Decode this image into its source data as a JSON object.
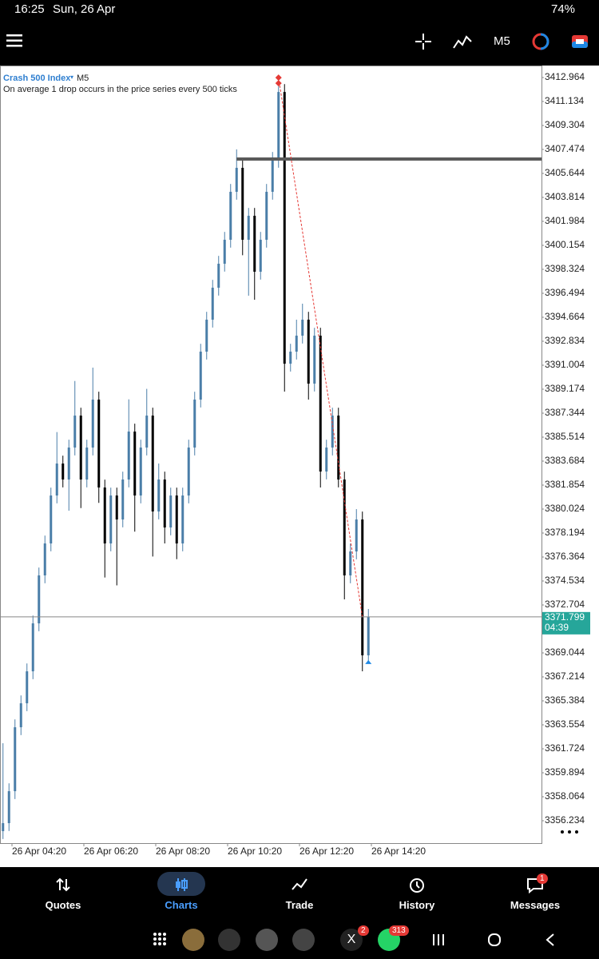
{
  "status_bar": {
    "time": "16:25",
    "date": "Sun, 26 Apr",
    "battery": "74%"
  },
  "toolbar": {
    "timeframe": "M5"
  },
  "chart_data": {
    "type": "candlestick",
    "title": "Crash 500 Index",
    "timeframe": "M5",
    "subtitle": "On average 1 drop occurs in the price series every 500 ticks",
    "open": [
      3355.44,
      3356.05,
      3358.49,
      3363.37,
      3365.2,
      3367.64,
      3371.3,
      3374.96,
      3377.4,
      3381.06,
      3383.5,
      3382.28,
      3384.72,
      3387.16,
      3382.28,
      3384.72,
      3388.38,
      3381.67,
      3377.4,
      3381.06,
      3379.23,
      3382.28,
      3385.94,
      3381.06,
      3384.72,
      3387.16,
      3379.84,
      3382.28,
      3378.62,
      3381.06,
      3377.4,
      3381.06,
      3384.72,
      3388.38,
      3392.04,
      3394.48,
      3396.92,
      3398.75,
      3400.58,
      3404.24,
      3406.07,
      3400.58,
      3402.41,
      3398.14,
      3400.58,
      3404.24,
      3406.68,
      3411.86,
      3391.12,
      3392.04,
      3393.26,
      3394.48,
      3389.6,
      3393.26,
      3382.89,
      3384.72,
      3387.16,
      3382.28,
      3374.96,
      3376.79,
      3379.23,
      3368.86
    ],
    "high": [
      3362.15,
      3359.09,
      3363.97,
      3365.8,
      3368.24,
      3371.9,
      3375.56,
      3378.0,
      3381.66,
      3385.9,
      3384.1,
      3385.32,
      3389.8,
      3387.76,
      3385.32,
      3390.82,
      3388.98,
      3382.27,
      3381.66,
      3381.66,
      3382.88,
      3388.4,
      3386.54,
      3385.32,
      3389.2,
      3387.76,
      3383.5,
      3382.88,
      3381.66,
      3381.66,
      3381.66,
      3385.32,
      3388.98,
      3392.64,
      3395.08,
      3397.52,
      3399.35,
      3401.18,
      3404.84,
      3407.48,
      3406.67,
      3403.01,
      3403.01,
      3401.18,
      3404.84,
      3407.28,
      3412.96,
      3412.46,
      3392.64,
      3394.48,
      3395.7,
      3395.08,
      3393.86,
      3393.86,
      3385.32,
      3387.76,
      3387.76,
      3382.88,
      3377.39,
      3380.02,
      3379.83,
      3372.4
    ],
    "low": [
      3354.84,
      3355.45,
      3357.89,
      3362.77,
      3364.6,
      3367.04,
      3370.7,
      3374.36,
      3376.8,
      3380.46,
      3381.68,
      3379.9,
      3384.12,
      3380.1,
      3381.68,
      3384.12,
      3380.5,
      3374.8,
      3376.8,
      3374.2,
      3378.63,
      3381.68,
      3378.3,
      3380.46,
      3384.12,
      3376.4,
      3379.24,
      3377.4,
      3378.02,
      3376.2,
      3376.8,
      3380.46,
      3384.12,
      3387.78,
      3391.44,
      3393.88,
      3396.32,
      3398.15,
      3399.98,
      3403.64,
      3399.4,
      3396.31,
      3396.0,
      3397.54,
      3399.98,
      3403.64,
      3406.08,
      3388.99,
      3390.52,
      3391.44,
      3392.66,
      3388.38,
      3389.0,
      3381.67,
      3382.29,
      3384.12,
      3381.68,
      3373.13,
      3374.36,
      3376.19,
      3367.64,
      3368.26
    ],
    "close": [
      3356.05,
      3358.49,
      3363.37,
      3365.2,
      3367.64,
      3371.3,
      3374.96,
      3377.4,
      3381.06,
      3383.5,
      3382.28,
      3384.72,
      3387.16,
      3382.28,
      3384.72,
      3388.38,
      3381.67,
      3377.4,
      3381.06,
      3379.23,
      3382.28,
      3385.94,
      3381.06,
      3384.72,
      3387.16,
      3379.84,
      3382.28,
      3378.62,
      3381.06,
      3377.4,
      3381.06,
      3384.72,
      3388.38,
      3392.04,
      3394.48,
      3396.92,
      3398.75,
      3400.58,
      3404.24,
      3406.07,
      3400.58,
      3402.41,
      3398.14,
      3400.58,
      3404.24,
      3406.68,
      3411.86,
      3391.12,
      3392.04,
      3393.26,
      3394.48,
      3389.6,
      3393.26,
      3382.89,
      3384.72,
      3387.16,
      3382.28,
      3374.96,
      3376.79,
      3379.23,
      3368.86,
      3371.799
    ],
    "up_color": "#4a7ea8",
    "down_color": "#000000",
    "xlim": [
      -0.5,
      89.9
    ],
    "xticks": [
      {
        "value": 1.5,
        "label": "26 Apr 04:20"
      },
      {
        "value": 13.5,
        "label": "26 Apr 06:20"
      },
      {
        "value": 25.5,
        "label": "26 Apr 08:20"
      },
      {
        "value": 37.5,
        "label": "26 Apr 10:20"
      },
      {
        "value": 49.5,
        "label": "26 Apr 12:20"
      },
      {
        "value": 61.5,
        "label": "26 Apr 14:20"
      }
    ],
    "ylim": [
      3354.526,
      3413.879
    ],
    "yticks": [
      3412.964,
      3411.134,
      3409.304,
      3407.474,
      3405.644,
      3403.814,
      3401.984,
      3400.154,
      3398.324,
      3396.494,
      3394.664,
      3392.834,
      3391.004,
      3389.174,
      3387.344,
      3385.514,
      3383.684,
      3381.854,
      3380.024,
      3378.194,
      3376.364,
      3374.534,
      3372.704,
      3369.044,
      3367.214,
      3365.384,
      3363.554,
      3361.724,
      3359.894,
      3358.064,
      3356.234
    ],
    "hline": {
      "value": 3406.74,
      "from": 39,
      "color": "#5a5a5a"
    },
    "trendline": {
      "x": [
        46,
        60
      ],
      "y": [
        3412.96,
        3371.8
      ],
      "color": "#e53935"
    },
    "current_price": {
      "value": 3371.799,
      "countdown": "04:39",
      "color": "#26a69a"
    }
  },
  "bottom_nav": {
    "items": [
      "Quotes",
      "Charts",
      "Trade",
      "History",
      "Messages"
    ],
    "messages_badge": "1"
  },
  "system_nav": {
    "x_badge": "2",
    "whatsapp_badge": "313"
  }
}
